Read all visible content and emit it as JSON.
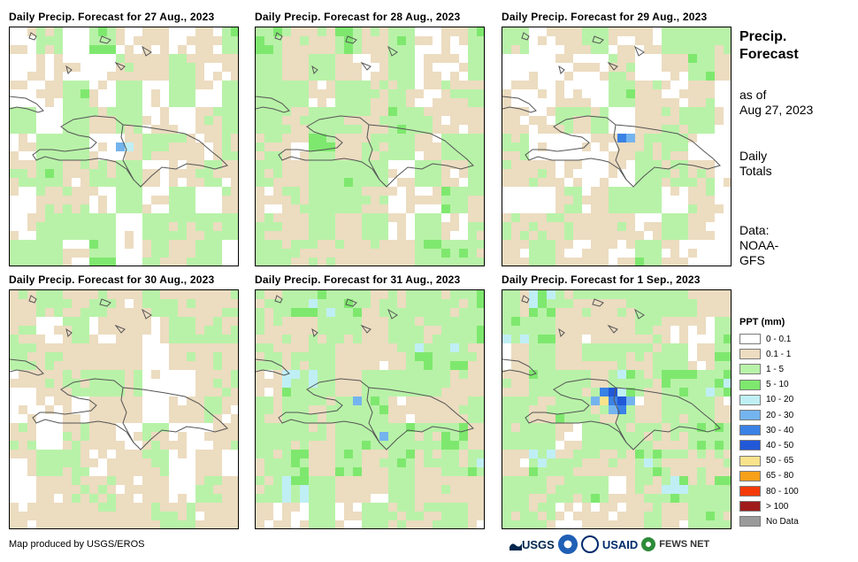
{
  "panels": [
    {
      "title": "Daily Precip. Forecast for 27 Aug., 2023",
      "seed": 27
    },
    {
      "title": "Daily Precip. Forecast for 28 Aug., 2023",
      "seed": 28
    },
    {
      "title": "Daily Precip. Forecast for 29 Aug., 2023",
      "seed": 29
    },
    {
      "title": "Daily Precip. Forecast for 30 Aug., 2023",
      "seed": 30
    },
    {
      "title": "Daily Precip. Forecast for 31 Aug., 2023",
      "seed": 31
    },
    {
      "title": "Daily Precip. Forecast for 1 Sep., 2023",
      "seed": 1
    }
  ],
  "side": {
    "title_line1": "Precip.",
    "title_line2": "Forecast",
    "asof_line1": "as of",
    "asof_line2": "Aug 27, 2023",
    "daily_line1": "Daily",
    "daily_line2": "Totals",
    "data_line1": "Data:",
    "data_line2": "NOAA-",
    "data_line3": "GFS"
  },
  "legend": {
    "title": "PPT (mm)",
    "items": [
      {
        "label": "0 - 0.1",
        "color": "#ffffff"
      },
      {
        "label": "0.1 - 1",
        "color": "#ecdcc0"
      },
      {
        "label": "1 - 5",
        "color": "#b8f2a8"
      },
      {
        "label": "5 - 10",
        "color": "#7ee86e"
      },
      {
        "label": "10 - 20",
        "color": "#bfeff5"
      },
      {
        "label": "20 - 30",
        "color": "#74b4ee"
      },
      {
        "label": "30 - 40",
        "color": "#3a82e6"
      },
      {
        "label": "40 - 50",
        "color": "#2158d8"
      },
      {
        "label": "50 - 65",
        "color": "#f9e38c"
      },
      {
        "label": "65 - 80",
        "color": "#f7a01a"
      },
      {
        "label": "80 - 100",
        "color": "#f53a0a"
      },
      {
        "label": "> 100",
        "color": "#a01a1a"
      },
      {
        "label": "No Data",
        "color": "#9a9a9a"
      }
    ]
  },
  "credit": "Map produced by USGS/EROS",
  "logos": {
    "usgs": "USGS",
    "usaid": "USAID",
    "fews": "FEWS NET"
  }
}
